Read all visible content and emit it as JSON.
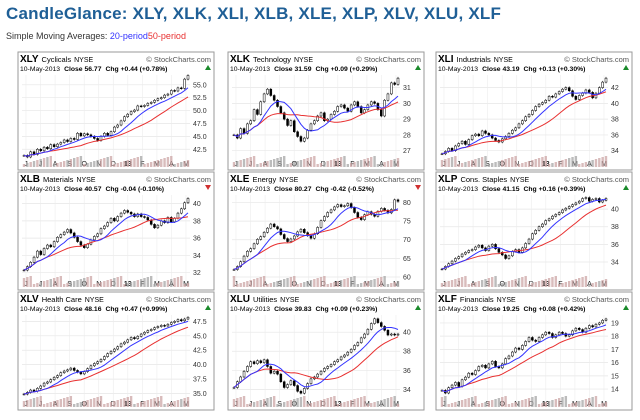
{
  "header": {
    "title": "CandleGlance: XLY, XLK, XLI, XLB, XLE, XLP, XLV, XLU, XLF",
    "sma_label": "Simple Moving Averages: ",
    "sma_20": "20-period",
    "sma_50": "50-period"
  },
  "colors": {
    "title": "#1f5f96",
    "sma20": "#3333ff",
    "sma50": "#e83030",
    "candle": "#000000",
    "volume_up": "#c9a0a0",
    "volume_down": "#a0a0a0"
  },
  "chart_data": [
    {
      "type": "line",
      "symbol": "XLY",
      "name": "Cyclicals",
      "exchange": "NYSE",
      "watermark": "© StockCharts.com",
      "date": "10-May-2013",
      "close_label": "Close 56.77",
      "chg_label": "Chg +0.44 (+0.78%)",
      "chg_direction": "up",
      "months": [
        "J",
        "J",
        "A",
        "S",
        "O",
        "N",
        "D",
        "13",
        "F",
        "M",
        "A",
        "M"
      ],
      "y_ticks": [
        "55.0",
        "52.5",
        "50.0",
        "47.5",
        "45.0",
        "42.5"
      ],
      "x": [
        0,
        1,
        2,
        3,
        4,
        5,
        6,
        7,
        8,
        9,
        10,
        11,
        12,
        13,
        14,
        15,
        16,
        17,
        18,
        19,
        20,
        21,
        22,
        23,
        24,
        25,
        26,
        27,
        28,
        29,
        30,
        31,
        32,
        33,
        34,
        35,
        36,
        37,
        38,
        39,
        40,
        41,
        42,
        43,
        44,
        45,
        46,
        47,
        48,
        49
      ],
      "price": [
        41.3,
        41.0,
        42.0,
        41.5,
        42.5,
        42.2,
        42.9,
        42.6,
        43.4,
        43.0,
        43.5,
        43.8,
        44.3,
        44.0,
        44.6,
        44.4,
        45.6,
        45.1,
        45.5,
        45.3,
        45.0,
        44.6,
        44.2,
        45.0,
        45.6,
        45.2,
        45.9,
        46.8,
        47.2,
        48.0,
        48.8,
        49.3,
        49.8,
        50.1,
        50.9,
        50.8,
        51.0,
        51.4,
        51.6,
        52.0,
        52.3,
        52.5,
        53.0,
        53.2,
        53.9,
        53.8,
        54.4,
        54.3,
        56.1,
        56.8
      ],
      "ylim": [
        41,
        56.9
      ]
    },
    {
      "type": "line",
      "symbol": "XLK",
      "name": "Technology",
      "exchange": "NYSE",
      "watermark": "© StockCharts.com",
      "date": "10-May-2013",
      "close_label": "Close 31.59",
      "chg_label": "Chg +0.09 (+0.29%)",
      "chg_direction": "up",
      "months": [
        "J",
        "J",
        "A",
        "S",
        "O",
        "N",
        "D",
        "13",
        "F",
        "M",
        "A",
        "M"
      ],
      "y_ticks": [
        "31",
        "30",
        "29",
        "28",
        "27"
      ],
      "x": [
        0,
        1,
        2,
        3,
        4,
        5,
        6,
        7,
        8,
        9,
        10,
        11,
        12,
        13,
        14,
        15,
        16,
        17,
        18,
        19,
        20,
        21,
        22,
        23,
        24,
        25,
        26,
        27,
        28,
        29,
        30,
        31,
        32,
        33,
        34,
        35,
        36,
        37,
        38,
        39,
        40,
        41,
        42,
        43,
        44,
        45,
        46,
        47,
        48,
        49
      ],
      "price": [
        28.0,
        27.8,
        28.4,
        28.1,
        28.7,
        28.9,
        29.6,
        29.3,
        30.1,
        30.6,
        30.9,
        30.5,
        30.2,
        29.8,
        29.4,
        29.0,
        28.6,
        28.9,
        28.2,
        27.9,
        27.6,
        27.8,
        28.3,
        28.7,
        28.9,
        29.2,
        29.4,
        28.9,
        29.0,
        29.3,
        29.5,
        29.8,
        29.9,
        29.7,
        29.5,
        29.9,
        30.1,
        29.8,
        29.4,
        29.6,
        29.9,
        30.1,
        30.0,
        29.6,
        29.2,
        30.2,
        30.6,
        31.3,
        31.2,
        31.6
      ],
      "ylim": [
        26.6,
        31.8
      ]
    },
    {
      "type": "line",
      "symbol": "XLI",
      "name": "Industrials",
      "exchange": "NYSE",
      "watermark": "© StockCharts.com",
      "date": "10-May-2013",
      "close_label": "Close 43.19",
      "chg_label": "Chg +0.13 (+0.30%)",
      "chg_direction": "up",
      "months": [
        "J",
        "J",
        "A",
        "S",
        "O",
        "N",
        "D",
        "13",
        "F",
        "M",
        "A",
        "M"
      ],
      "y_ticks": [
        "42",
        "40",
        "38",
        "36",
        "34"
      ],
      "x": [
        0,
        1,
        2,
        3,
        4,
        5,
        6,
        7,
        8,
        9,
        10,
        11,
        12,
        13,
        14,
        15,
        16,
        17,
        18,
        19,
        20,
        21,
        22,
        23,
        24,
        25,
        26,
        27,
        28,
        29,
        30,
        31,
        32,
        33,
        34,
        35,
        36,
        37,
        38,
        39,
        40,
        41,
        42,
        43,
        44,
        45,
        46,
        47,
        48,
        49
      ],
      "price": [
        33.6,
        33.9,
        34.3,
        34.0,
        34.6,
        34.9,
        35.2,
        34.8,
        35.4,
        35.9,
        36.1,
        35.9,
        36.5,
        36.2,
        36.0,
        35.6,
        35.3,
        35.1,
        35.5,
        35.8,
        36.2,
        36.6,
        36.9,
        37.4,
        37.8,
        38.3,
        38.6,
        39.1,
        39.6,
        39.9,
        40.1,
        40.4,
        40.9,
        40.8,
        41.2,
        41.5,
        41.8,
        42.0,
        41.6,
        40.9,
        40.5,
        41.0,
        41.3,
        41.7,
        41.4,
        40.7,
        41.3,
        42.0,
        42.7,
        43.2
      ],
      "ylim": [
        33.2,
        43.6
      ]
    },
    {
      "type": "line",
      "symbol": "XLB",
      "name": "Materials",
      "exchange": "NYSE",
      "watermark": "© StockCharts.com",
      "date": "10-May-2013",
      "close_label": "Close 40.57",
      "chg_label": "Chg -0.04 (-0.10%)",
      "chg_direction": "down",
      "months": [
        "J",
        "J",
        "A",
        "S",
        "O",
        "N",
        "D",
        "13",
        "F",
        "M",
        "A",
        "M"
      ],
      "y_ticks": [
        "40",
        "38",
        "36",
        "34",
        "32"
      ],
      "x": [
        0,
        1,
        2,
        3,
        4,
        5,
        6,
        7,
        8,
        9,
        10,
        11,
        12,
        13,
        14,
        15,
        16,
        17,
        18,
        19,
        20,
        21,
        22,
        23,
        24,
        25,
        26,
        27,
        28,
        29,
        30,
        31,
        32,
        33,
        34,
        35,
        36,
        37,
        38,
        39,
        40,
        41,
        42,
        43,
        44,
        45,
        46,
        47,
        48,
        49
      ],
      "price": [
        32.3,
        32.7,
        33.2,
        33.8,
        34.5,
        34.1,
        34.8,
        35.2,
        35.0,
        35.6,
        36.1,
        36.4,
        36.7,
        37.0,
        36.6,
        36.1,
        35.6,
        35.2,
        34.9,
        35.3,
        35.8,
        36.2,
        36.5,
        37.1,
        37.4,
        37.8,
        38.3,
        38.0,
        38.5,
        38.9,
        39.2,
        39.0,
        38.8,
        38.5,
        38.8,
        38.5,
        38.4,
        38.1,
        37.6,
        37.2,
        37.5,
        38.0,
        37.8,
        38.4,
        37.9,
        38.3,
        38.9,
        39.4,
        40.1,
        40.6
      ],
      "ylim": [
        31.5,
        41.0
      ]
    },
    {
      "type": "line",
      "symbol": "XLE",
      "name": "Energy",
      "exchange": "NYSE",
      "watermark": "© StockCharts.com",
      "date": "10-May-2013",
      "close_label": "Close 80.27",
      "chg_label": "Chg -0.42 (-0.52%)",
      "chg_direction": "down",
      "months": [
        "J",
        "J",
        "A",
        "S",
        "O",
        "N",
        "D",
        "13",
        "F",
        "M",
        "A",
        "M"
      ],
      "y_ticks": [
        "80",
        "75",
        "70",
        "65",
        "60"
      ],
      "x": [
        0,
        1,
        2,
        3,
        4,
        5,
        6,
        7,
        8,
        9,
        10,
        11,
        12,
        13,
        14,
        15,
        16,
        17,
        18,
        19,
        20,
        21,
        22,
        23,
        24,
        25,
        26,
        27,
        28,
        29,
        30,
        31,
        32,
        33,
        34,
        35,
        36,
        37,
        38,
        39,
        40,
        41,
        42,
        43,
        44,
        45,
        46,
        47,
        48,
        49
      ],
      "price": [
        62.0,
        62.8,
        64.1,
        65.6,
        66.9,
        67.6,
        68.9,
        70.1,
        70.8,
        72.0,
        73.1,
        74.2,
        73.5,
        72.9,
        71.4,
        70.3,
        69.5,
        70.2,
        71.0,
        72.1,
        72.8,
        71.9,
        71.1,
        70.4,
        71.6,
        73.3,
        75.1,
        76.2,
        77.3,
        78.0,
        78.8,
        79.4,
        78.9,
        79.1,
        79.7,
        78.6,
        77.3,
        76.0,
        75.4,
        76.7,
        77.5,
        76.8,
        76.3,
        77.6,
        78.4,
        77.9,
        77.2,
        78.1,
        80.7,
        80.3
      ],
      "ylim": [
        60,
        82
      ]
    },
    {
      "type": "line",
      "symbol": "XLP",
      "name": "Cons. Staples",
      "exchange": "NYSE",
      "watermark": "© StockCharts.com",
      "date": "10-May-2013",
      "close_label": "Close 41.15",
      "chg_label": "Chg +0.16 (+0.39%)",
      "chg_direction": "up",
      "months": [
        "J",
        "J",
        "A",
        "S",
        "O",
        "N",
        "D",
        "13",
        "F",
        "M",
        "A",
        "M"
      ],
      "y_ticks": [
        "40",
        "38",
        "36",
        "34"
      ],
      "x": [
        0,
        1,
        2,
        3,
        4,
        5,
        6,
        7,
        8,
        9,
        10,
        11,
        12,
        13,
        14,
        15,
        16,
        17,
        18,
        19,
        20,
        21,
        22,
        23,
        24,
        25,
        26,
        27,
        28,
        29,
        30,
        31,
        32,
        33,
        34,
        35,
        36,
        37,
        38,
        39,
        40,
        41,
        42,
        43,
        44,
        45,
        46,
        47,
        48,
        49
      ],
      "price": [
        33.2,
        33.5,
        33.8,
        34.1,
        34.4,
        34.6,
        34.9,
        35.1,
        35.3,
        35.4,
        35.7,
        35.9,
        35.6,
        35.3,
        35.8,
        36.0,
        35.5,
        35.1,
        34.8,
        34.4,
        34.7,
        35.2,
        35.4,
        35.1,
        35.6,
        36.1,
        36.6,
        37.2,
        37.6,
        38.0,
        38.3,
        38.7,
        38.9,
        39.2,
        39.4,
        39.6,
        39.9,
        40.1,
        40.3,
        40.5,
        40.7,
        40.9,
        41.2,
        41.3,
        40.9,
        41.1,
        41.2,
        40.8,
        41.0,
        41.2
      ],
      "ylim": [
        32.3,
        41.6
      ]
    },
    {
      "type": "line",
      "symbol": "XLV",
      "name": "Health Care",
      "exchange": "NYSE",
      "watermark": "© StockCharts.com",
      "date": "10-May-2013",
      "close_label": "Close 48.16",
      "chg_label": "Chg +0.47 (+0.99%)",
      "chg_direction": "up",
      "months": [
        "J",
        "J",
        "A",
        "S",
        "O",
        "N",
        "D",
        "13",
        "F",
        "M",
        "A",
        "M"
      ],
      "y_ticks": [
        "47.5",
        "45.0",
        "42.5",
        "40.0",
        "37.5",
        "35.0"
      ],
      "x": [
        0,
        1,
        2,
        3,
        4,
        5,
        6,
        7,
        8,
        9,
        10,
        11,
        12,
        13,
        14,
        15,
        16,
        17,
        18,
        19,
        20,
        21,
        22,
        23,
        24,
        25,
        26,
        27,
        28,
        29,
        30,
        31,
        32,
        33,
        34,
        35,
        36,
        37,
        38,
        39,
        40,
        41,
        42,
        43,
        44,
        45,
        46,
        47,
        48,
        49
      ],
      "price": [
        34.9,
        35.2,
        35.6,
        35.4,
        35.9,
        36.3,
        36.8,
        37.0,
        37.4,
        37.8,
        38.1,
        38.6,
        38.9,
        39.1,
        39.4,
        39.0,
        38.7,
        38.4,
        38.8,
        39.3,
        39.8,
        40.2,
        40.5,
        40.9,
        41.4,
        41.9,
        42.3,
        42.7,
        43.1,
        43.6,
        43.9,
        44.3,
        44.7,
        44.5,
        44.9,
        45.3,
        45.6,
        45.9,
        46.1,
        46.4,
        46.6,
        46.8,
        46.7,
        47.0,
        47.3,
        47.5,
        47.8,
        47.6,
        47.9,
        48.2
      ],
      "ylim": [
        34.4,
        48.6
      ]
    },
    {
      "type": "line",
      "symbol": "XLU",
      "name": "Utilities",
      "exchange": "NYSE",
      "watermark": "© StockCharts.com",
      "date": "10-May-2013",
      "close_label": "Close 39.83",
      "chg_label": "Chg +0.09 (+0.23%)",
      "chg_direction": "up",
      "months": [
        "J",
        "J",
        "A",
        "S",
        "O",
        "N",
        "D",
        "13",
        "F",
        "M",
        "A",
        "M"
      ],
      "y_ticks": [
        "40",
        "38",
        "36",
        "34"
      ],
      "x": [
        0,
        1,
        2,
        3,
        4,
        5,
        6,
        7,
        8,
        9,
        10,
        11,
        12,
        13,
        14,
        15,
        16,
        17,
        18,
        19,
        20,
        21,
        22,
        23,
        24,
        25,
        26,
        27,
        28,
        29,
        30,
        31,
        32,
        33,
        34,
        35,
        36,
        37,
        38,
        39,
        40,
        41,
        42,
        43,
        44,
        45,
        46,
        47,
        48,
        49
      ],
      "price": [
        34.2,
        34.8,
        35.3,
        35.9,
        36.4,
        36.9,
        36.7,
        37.0,
        36.8,
        37.1,
        36.4,
        35.7,
        35.9,
        35.6,
        34.8,
        34.2,
        34.5,
        34.9,
        34.4,
        33.8,
        33.6,
        34.1,
        34.6,
        35.1,
        35.3,
        35.6,
        35.9,
        36.2,
        36.4,
        36.6,
        36.9,
        37.1,
        37.4,
        37.6,
        37.9,
        38.2,
        38.6,
        38.9,
        39.4,
        39.8,
        40.3,
        40.9,
        41.4,
        41.0,
        40.6,
        40.2,
        39.7,
        39.8,
        39.7,
        39.8
      ],
      "ylim": [
        33.2,
        41.8
      ]
    },
    {
      "type": "line",
      "symbol": "XLF",
      "name": "Financials",
      "exchange": "NYSE",
      "watermark": "© StockCharts.com",
      "date": "10-May-2013",
      "close_label": "Close 19.25",
      "chg_label": "Chg +0.08 (+0.42%)",
      "chg_direction": "up",
      "months": [
        "J",
        "J",
        "A",
        "S",
        "O",
        "N",
        "D",
        "13",
        "F",
        "M",
        "A",
        "M"
      ],
      "y_ticks": [
        "19",
        "18",
        "17",
        "16",
        "15",
        "14"
      ],
      "x": [
        0,
        1,
        2,
        3,
        4,
        5,
        6,
        7,
        8,
        9,
        10,
        11,
        12,
        13,
        14,
        15,
        16,
        17,
        18,
        19,
        20,
        21,
        22,
        23,
        24,
        25,
        26,
        27,
        28,
        29,
        30,
        31,
        32,
        33,
        34,
        35,
        36,
        37,
        38,
        39,
        40,
        41,
        42,
        43,
        44,
        45,
        46,
        47,
        48,
        49
      ],
      "price": [
        13.9,
        13.7,
        14.1,
        14.3,
        14.5,
        14.2,
        14.7,
        14.9,
        15.2,
        15.1,
        15.4,
        15.7,
        15.8,
        15.6,
        15.9,
        16.1,
        15.7,
        15.6,
        15.9,
        16.3,
        16.5,
        16.8,
        17.1,
        17.0,
        17.3,
        17.6,
        17.9,
        17.7,
        17.6,
        17.9,
        18.1,
        18.3,
        18.2,
        17.9,
        18.1,
        18.3,
        18.2,
        18.0,
        18.1,
        18.4,
        18.6,
        18.5,
        18.3,
        18.6,
        18.8,
        18.7,
        18.9,
        19.0,
        19.2,
        19.3
      ],
      "ylim": [
        13.4,
        19.6
      ]
    }
  ]
}
